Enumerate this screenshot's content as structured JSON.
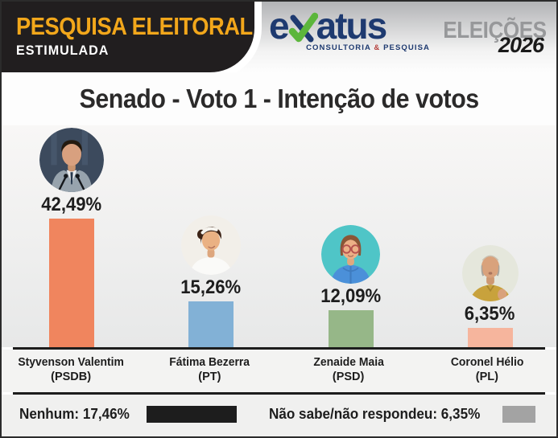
{
  "header": {
    "banner_line1": "PESQUISA ELEITORAL",
    "banner_line2": "ESTIMULADA",
    "logo": {
      "word_start": "e",
      "word_end": "atus",
      "check_icon_color": "#5cb63c",
      "word_color": "#1e3a70",
      "subtitle_pre": "CONSULTORIA",
      "subtitle_amp": "&",
      "subtitle_post": "PESQUISA"
    },
    "edition_label": "ELEIÇÕES",
    "edition_year": "2026"
  },
  "page_title": "Senado - Voto 1 - Intenção de votos",
  "chart_data": {
    "type": "bar",
    "title": "Senado - Voto 1 - Intenção de votos",
    "categories": [
      "Styvenson Valentim (PSDB)",
      "Fátima Bezerra (PT)",
      "Zenaide Maia (PSD)",
      "Coronel Hélio (PL)"
    ],
    "values": [
      42.49,
      15.26,
      12.09,
      6.35
    ],
    "value_labels": [
      "42,49%",
      "15,26%",
      "12,09%",
      "6,35%"
    ],
    "bar_colors": [
      "#f0855e",
      "#82b1d6",
      "#96b788",
      "#f6b59d"
    ],
    "ylim": [
      0,
      45
    ],
    "grid": false,
    "legend": false,
    "other_responses": [
      {
        "label": "Nenhum: 17,46%",
        "value": 17.46,
        "color": "#1d1d1d"
      },
      {
        "label": "Não sabe/não respondeu: 6,35%",
        "value": 6.35,
        "color": "#a3a3a3"
      }
    ]
  },
  "candidates": [
    {
      "name": "Styvenson Valentim",
      "party": "(PSDB)",
      "percent_label": "42,49%",
      "value": 42.49,
      "bar_color": "#f0855e",
      "photo_size": 80,
      "avatar": {
        "style": "suit",
        "bg": "#3c4a5d",
        "skin": "#d8a07f",
        "hair": "#241a10",
        "shirt": "#97a3ad"
      }
    },
    {
      "name": "Fátima Bezerra",
      "party": "(PT)",
      "percent_label": "15,26%",
      "value": 15.26,
      "bar_color": "#82b1d6",
      "photo_size": 74,
      "avatar": {
        "style": "headband",
        "bg": "#f2efe9",
        "skin": "#eab183",
        "hair": "#3c2316",
        "shirt": "#fafaf8"
      }
    },
    {
      "name": "Zenaide Maia",
      "party": "(PSD)",
      "percent_label": "12,09%",
      "value": 12.09,
      "bar_color": "#96b788",
      "photo_size": 73,
      "avatar": {
        "style": "glasses",
        "bg": "#4fc5c7",
        "skin": "#ecb086",
        "hair": "#8a5636",
        "shirt": "#4b90d9"
      }
    },
    {
      "name": "Coronel Hélio",
      "party": "(PL)",
      "percent_label": "6,35%",
      "value": 6.35,
      "bar_color": "#f6b59d",
      "photo_size": 70,
      "avatar": {
        "style": "bald",
        "bg": "#e5e7dc",
        "skin": "#d9a27c",
        "hair": "#a8a49c",
        "shirt": "#c8a23c"
      }
    }
  ],
  "footer": {
    "none_label": "Nenhum: 17,46%",
    "none_value": 17.46,
    "none_color": "#1d1d1d",
    "dk_label": "Não sabe/não respondeu: 6,35%",
    "dk_value": 6.35,
    "dk_color": "#a3a3a3"
  }
}
